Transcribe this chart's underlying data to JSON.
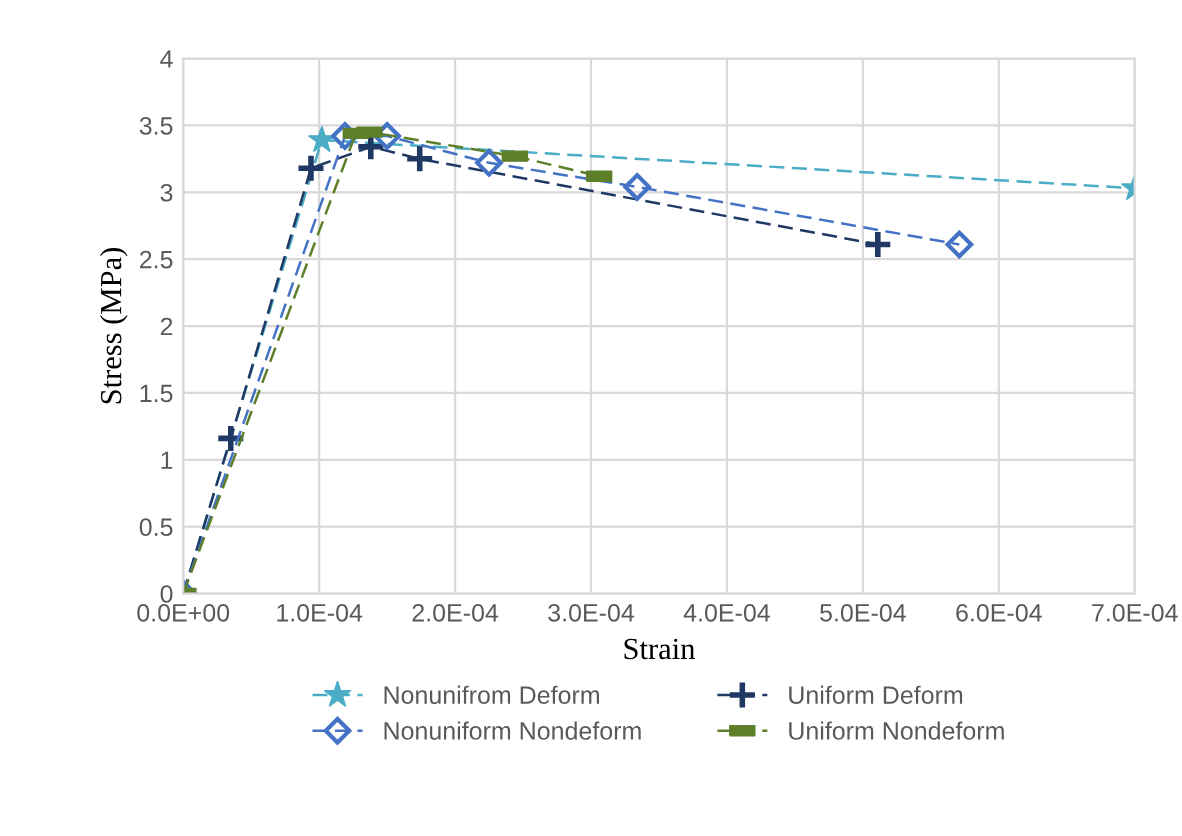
{
  "chart_data": {
    "type": "line",
    "xlabel": "Strain",
    "ylabel": "Stress (MPa)",
    "xlim": [
      0,
      0.0007
    ],
    "ylim": [
      0,
      4
    ],
    "xticks": [
      {
        "value": 0,
        "label": "0.0E+00"
      },
      {
        "value": 0.0001,
        "label": "1.0E-04"
      },
      {
        "value": 0.0002,
        "label": "2.0E-04"
      },
      {
        "value": 0.0003,
        "label": "3.0E-04"
      },
      {
        "value": 0.0004,
        "label": "4.0E-04"
      },
      {
        "value": 0.0005,
        "label": "5.0E-04"
      },
      {
        "value": 0.0006,
        "label": "6.0E-04"
      },
      {
        "value": 0.0007,
        "label": "7.0E-04"
      }
    ],
    "yticks": [
      0,
      0.5,
      1,
      1.5,
      2,
      2.5,
      3,
      3.5,
      4
    ],
    "grid": true,
    "legend": "bottom",
    "line_style": "dashed",
    "series": [
      {
        "name": "Nonunifrom Deform",
        "color": "#4bacc6",
        "marker": "star",
        "x": [
          0,
          0.000102,
          0.0007
        ],
        "values": [
          0,
          3.39,
          3.03
        ]
      },
      {
        "name": "Uniform Deform",
        "color": "#1f3864",
        "marker": "cross",
        "x": [
          0,
          3.5e-05,
          9.4e-05,
          0.000138,
          0.000174,
          0.000511
        ],
        "values": [
          0,
          1.16,
          3.18,
          3.34,
          3.25,
          2.61
        ]
      },
      {
        "name": "Nonuniform Nondeform",
        "color": "#4472c4",
        "marker": "diamond",
        "x": [
          0,
          0.000119,
          0.00015,
          0.000225,
          0.000334,
          0.000571
        ],
        "values": [
          0,
          3.42,
          3.42,
          3.22,
          3.04,
          2.61
        ]
      },
      {
        "name": "Uniform Nondeform",
        "color": "#5e7f2a",
        "marker": "square",
        "x": [
          0,
          0.000127,
          0.000137,
          0.000244,
          0.000306
        ],
        "values": [
          0,
          3.44,
          3.45,
          3.27,
          3.12
        ]
      }
    ]
  }
}
